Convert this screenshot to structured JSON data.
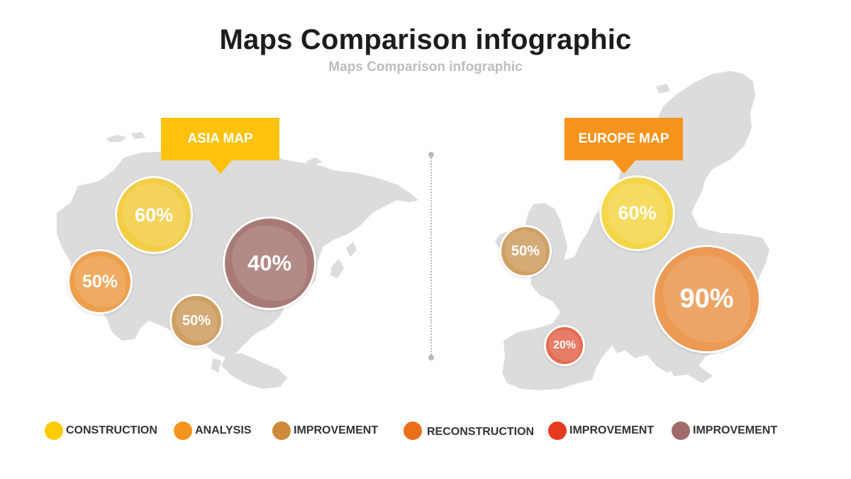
{
  "title": "Maps Comparison infographic",
  "subtitle": "Maps Comparison infographic",
  "colors": {
    "map_fill": "#dcdcdc",
    "asia_callout": "#ffc20e",
    "europe_callout": "#f7941d",
    "divider": "#b9b9b9"
  },
  "asia": {
    "label": "ASIA MAP",
    "bubbles": [
      {
        "value": "60%",
        "color": "#f2cd46"
      },
      {
        "value": "50%",
        "color": "#eda04c"
      },
      {
        "value": "50%",
        "color": "#cfa063"
      },
      {
        "value": "40%",
        "color": "#a87a76"
      }
    ]
  },
  "europe": {
    "label": "EUROPE MAP",
    "bubbles": [
      {
        "value": "50%",
        "color": "#cfa063"
      },
      {
        "value": "60%",
        "color": "#f4d649"
      },
      {
        "value": "90%",
        "color": "#eb9953"
      },
      {
        "value": "20%",
        "color": "#e46b52"
      }
    ]
  },
  "legend": [
    {
      "label": "CONSTRUCTION",
      "color": "#ffcc00"
    },
    {
      "label": "ANALYSIS",
      "color": "#f7941d"
    },
    {
      "label": "IMPROVEMENT",
      "color": "#cc8a3a"
    },
    {
      "label": "RECONSTRUCTION",
      "color": "#ea6f1a"
    },
    {
      "label": "IMPROVEMENT",
      "color": "#e63a1e"
    },
    {
      "label": "IMPROVEMENT",
      "color": "#9e6a6a"
    }
  ]
}
